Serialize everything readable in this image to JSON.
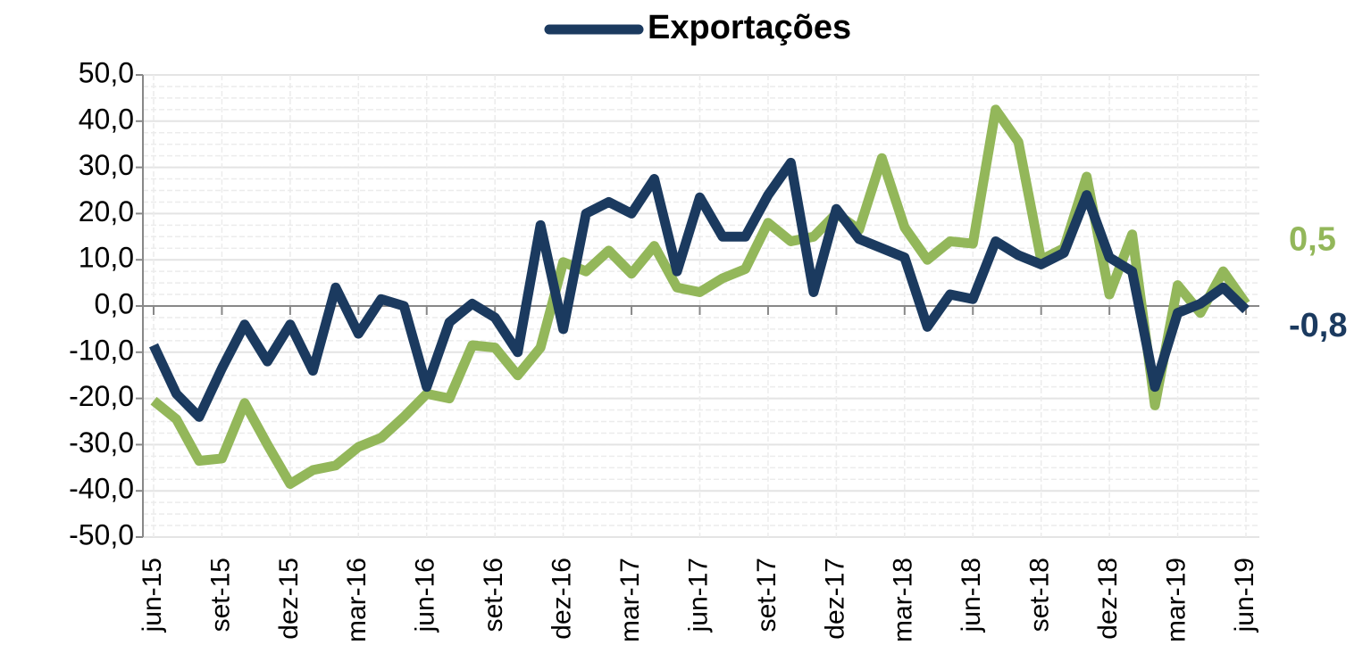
{
  "chart_data": {
    "type": "line",
    "categories": [
      "jun-15",
      null,
      null,
      "set-15",
      null,
      null,
      "dez-15",
      null,
      null,
      "mar-16",
      null,
      null,
      "jun-16",
      null,
      null,
      "set-16",
      null,
      null,
      "dez-16",
      null,
      null,
      "mar-17",
      null,
      null,
      "jun-17",
      null,
      null,
      "set-17",
      null,
      null,
      "dez-17",
      null,
      null,
      "mar-18",
      null,
      null,
      "jun-18",
      null,
      null,
      "set-18",
      null,
      null,
      "dez-18",
      null,
      null,
      "mar-19",
      null,
      null,
      "jun-19"
    ],
    "series": [
      {
        "name": "Exportações",
        "color": "#1b3a5f",
        "values": [
          -8.5,
          -19,
          -24,
          -13.5,
          -4,
          -12,
          -4,
          -14,
          4,
          -6,
          1.5,
          0,
          -17.5,
          -3.5,
          0.5,
          -2.5,
          -10,
          17.5,
          -5,
          20,
          22.5,
          20,
          27.5,
          7.5,
          23.5,
          15,
          15,
          24,
          31,
          3,
          21,
          14.5,
          12.5,
          10.5,
          -4.5,
          2.5,
          1.5,
          14,
          11,
          9,
          11.5,
          24,
          10.5,
          7.5,
          -17.5,
          -1.5,
          0.5,
          4,
          -0.8
        ],
        "value_labels": [
          null,
          null,
          null,
          null,
          null,
          null,
          null,
          null,
          null,
          null,
          null,
          null,
          null,
          null,
          null,
          null,
          null,
          null,
          null,
          null,
          null,
          null,
          null,
          null,
          null,
          null,
          null,
          null,
          null,
          null,
          null,
          null,
          null,
          null,
          null,
          null,
          null,
          null,
          null,
          null,
          null,
          null,
          null,
          null,
          null,
          null,
          null,
          null,
          "-0,8"
        ]
      },
      {
        "color": "#93b75a",
        "values": [
          -20.5,
          -24.5,
          -33.5,
          -33,
          -21,
          -30,
          -38.5,
          -35.5,
          -34.5,
          -30.5,
          -28.5,
          -24,
          -19,
          -20,
          -8.5,
          -9,
          -15,
          -9,
          9.5,
          7.5,
          12,
          7,
          13,
          4,
          3,
          6,
          8,
          18,
          14,
          15,
          20,
          16.5,
          32,
          17,
          10,
          14,
          13.5,
          42.5,
          35.5,
          10,
          12.5,
          28,
          2.5,
          15.5,
          -21.5,
          4.5,
          -1.5,
          7.5,
          0.5
        ],
        "value_labels": [
          null,
          null,
          null,
          null,
          null,
          null,
          null,
          null,
          null,
          null,
          null,
          null,
          null,
          null,
          null,
          null,
          null,
          null,
          null,
          null,
          null,
          null,
          null,
          null,
          null,
          null,
          null,
          null,
          null,
          null,
          null,
          null,
          null,
          null,
          null,
          null,
          null,
          null,
          null,
          null,
          null,
          null,
          null,
          null,
          null,
          null,
          null,
          null,
          "0,5"
        ]
      }
    ],
    "ylim": [
      -50,
      50
    ],
    "yticks": [
      {
        "value": -50,
        "label": "-50,0"
      },
      {
        "value": -40,
        "label": "-40,0"
      },
      {
        "value": -30,
        "label": "-30,0"
      },
      {
        "value": -20,
        "label": "-20,0"
      },
      {
        "value": -10,
        "label": "-10,0"
      },
      {
        "value": 0,
        "label": "0,0"
      },
      {
        "value": 10,
        "label": "10,0"
      },
      {
        "value": 20,
        "label": "20,0"
      },
      {
        "value": 30,
        "label": "30,0"
      },
      {
        "value": 40,
        "label": "40,0"
      },
      {
        "value": 50,
        "label": "50,0"
      }
    ],
    "grid": true,
    "legend": "top"
  }
}
